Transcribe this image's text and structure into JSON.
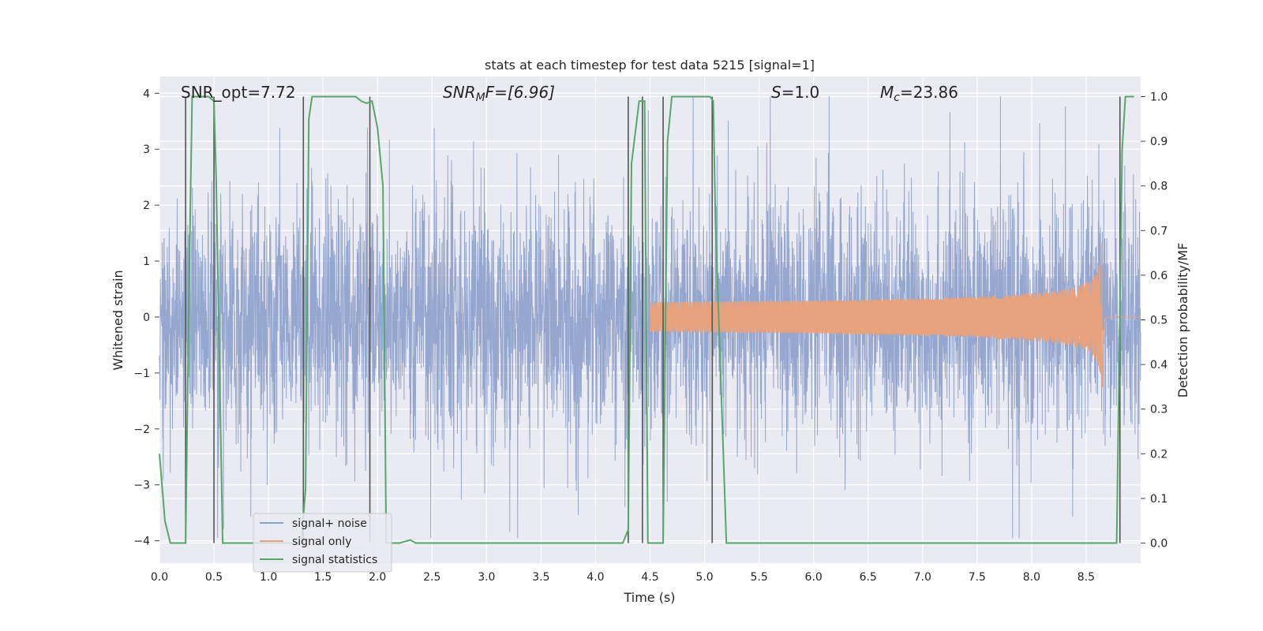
{
  "chart_data": {
    "type": "line",
    "title": "stats at each timestep for test data 5215 [signal=1]",
    "xlabel": "Time (s)",
    "ylabel": "Whitened strain",
    "y2label": "Detection probability/MF",
    "xlim": [
      0.0,
      9.0
    ],
    "ylim": [
      -4.4,
      4.3
    ],
    "y2lim": [
      -0.045,
      1.045
    ],
    "x_ticks": [
      "0.0",
      "0.5",
      "1.0",
      "1.5",
      "2.0",
      "2.5",
      "3.0",
      "3.5",
      "4.0",
      "4.5",
      "5.0",
      "5.5",
      "6.0",
      "6.5",
      "7.0",
      "7.5",
      "8.0",
      "8.5"
    ],
    "y_ticks": [
      "4",
      "3",
      "2",
      "1",
      "0",
      "−1",
      "−2",
      "−3",
      "−4"
    ],
    "y2_ticks": [
      "1.0",
      "0.9",
      "0.8",
      "0.7",
      "0.6",
      "0.5",
      "0.4",
      "0.3",
      "0.2",
      "0.1",
      "0.0"
    ],
    "annotations": {
      "snr_opt": "SNR_opt=7.72",
      "snr_mf_main": "SNR",
      "snr_mf_sub": "M",
      "snr_mf_rest": "F=[6.96]",
      "s_main": "S",
      "s_rest": "=1.0",
      "mc_main": "M",
      "mc_sub": "c",
      "mc_rest": "=23.86"
    },
    "legend": {
      "position": "lower-left",
      "entries": [
        "signal+ noise",
        "signal only",
        "signal statistics"
      ]
    },
    "series": [
      {
        "name": "signal+ noise",
        "color": "#8da0cb",
        "description": "whitened strain, unit-variance noise with spikes to about ±3.9",
        "typical_range": [
          -1.8,
          1.9
        ]
      },
      {
        "name": "signal only",
        "color": "#e8a27d",
        "description": "chirp waveform, amplitude growing toward merger near t=8.65 s",
        "peak_time": 8.65,
        "peak_amplitude": 1.55
      },
      {
        "name": "signal statistics",
        "color": "#55a868",
        "x": [
          0.0,
          0.05,
          0.1,
          0.24,
          0.27,
          0.3,
          0.45,
          0.5,
          0.52,
          0.58,
          1.3,
          1.34,
          1.37,
          1.4,
          1.8,
          1.85,
          1.9,
          1.95,
          2.0,
          2.05,
          2.08,
          2.2,
          2.3,
          2.35,
          2.4,
          4.25,
          4.3,
          4.33,
          4.4,
          4.45,
          4.48,
          4.62,
          4.66,
          4.7,
          5.05,
          5.08,
          5.1,
          5.2,
          5.25,
          8.78,
          8.83,
          8.86,
          8.94
        ],
        "values": [
          0.2,
          0.05,
          0.0,
          0.0,
          0.55,
          1.0,
          1.0,
          0.99,
          0.82,
          0.0,
          0.0,
          0.12,
          0.95,
          1.0,
          1.0,
          0.99,
          0.985,
          0.99,
          0.93,
          0.8,
          0.0,
          0.0,
          0.007,
          0.0,
          0.0,
          0.0,
          0.03,
          0.85,
          0.99,
          0.99,
          0.0,
          0.0,
          0.9,
          1.0,
          1.0,
          0.99,
          0.72,
          0.0,
          0.0,
          0.0,
          0.88,
          1.0,
          1.0
        ]
      }
    ],
    "vertical_markers": [
      0.24,
      0.5,
      1.32,
      1.93,
      4.3,
      4.43,
      4.62,
      5.07,
      8.81
    ]
  }
}
